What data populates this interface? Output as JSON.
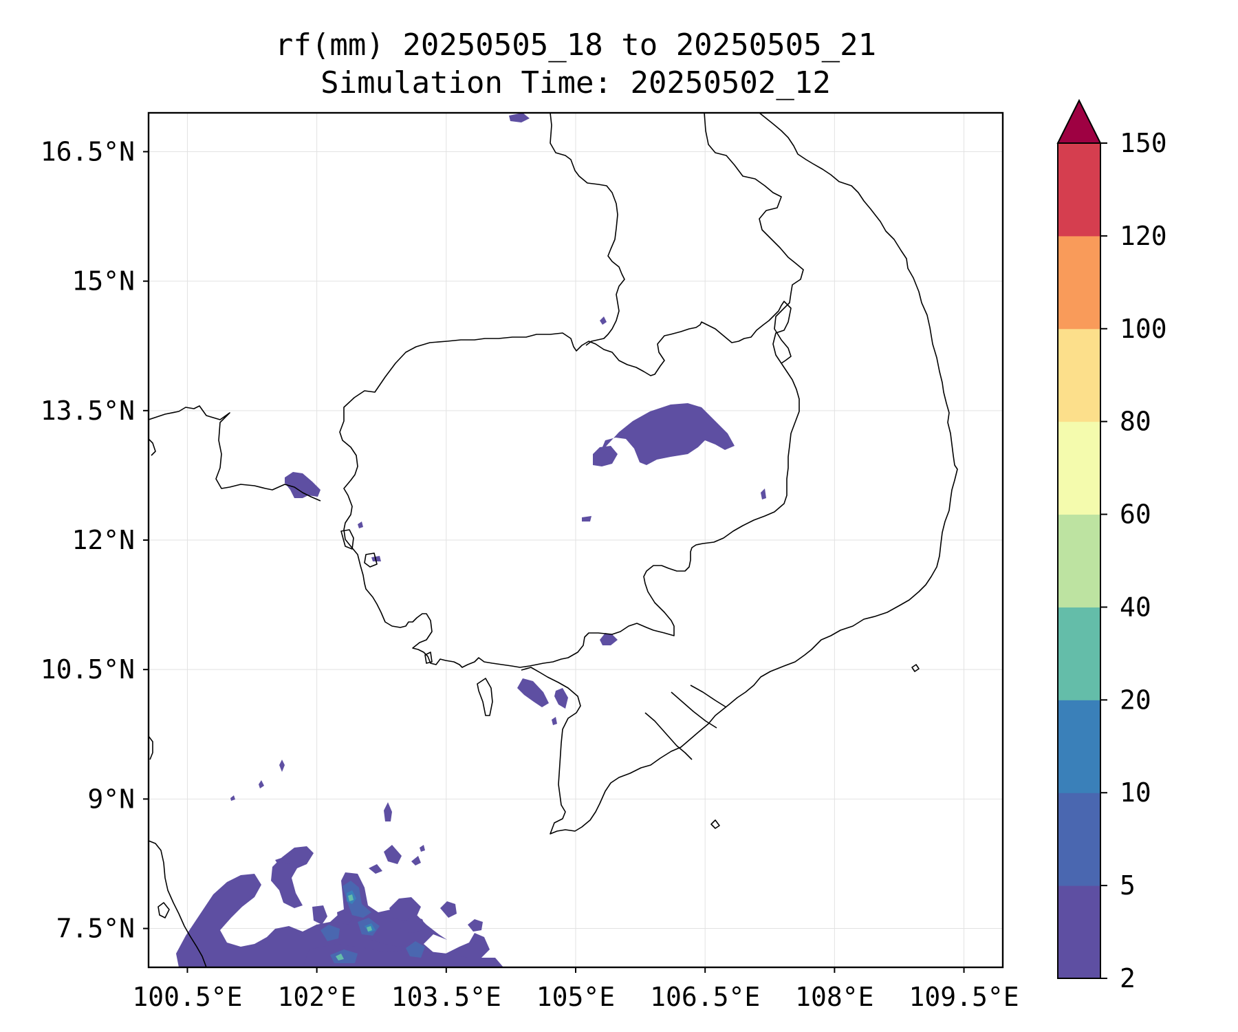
{
  "title": {
    "line1": "rf(mm) 20250505_18 to 20250505_21",
    "line2": "Simulation Time: 20250502_12"
  },
  "map": {
    "lon_range": [
      100.05,
      109.95
    ],
    "lat_range": [
      7.05,
      16.95
    ],
    "lon_ticks": [
      {
        "value": 100.5,
        "label": "100.5°E"
      },
      {
        "value": 102.0,
        "label": "102°E"
      },
      {
        "value": 103.5,
        "label": "103.5°E"
      },
      {
        "value": 105.0,
        "label": "105°E"
      },
      {
        "value": 106.5,
        "label": "106.5°E"
      },
      {
        "value": 108.0,
        "label": "108°E"
      },
      {
        "value": 109.5,
        "label": "109.5°E"
      }
    ],
    "lat_ticks": [
      {
        "value": 16.5,
        "label": "16.5°N"
      },
      {
        "value": 15.0,
        "label": "15°N"
      },
      {
        "value": 13.5,
        "label": "13.5°N"
      },
      {
        "value": 12.0,
        "label": "12°N"
      },
      {
        "value": 10.5,
        "label": "10.5°N"
      },
      {
        "value": 9.0,
        "label": "9°N"
      },
      {
        "value": 7.5,
        "label": "7.5°N"
      }
    ],
    "grid": true
  },
  "colorbar": {
    "levels": [
      2,
      5,
      10,
      20,
      40,
      60,
      80,
      100,
      120,
      150
    ],
    "tick_labels": [
      "2",
      "5",
      "10",
      "20",
      "40",
      "60",
      "80",
      "100",
      "120",
      "150"
    ],
    "colors": [
      "#5e4fa2",
      "#4a67b0",
      "#3a80b9",
      "#64bda9",
      "#bde3a1",
      "#f4fbad",
      "#fcdf8b",
      "#f99b5a",
      "#d53e4f"
    ],
    "extend_color": "#9e0142",
    "extend": "max"
  },
  "rain_colors": {
    "low": "#5e4fa2",
    "mid": "#4a67b0",
    "high": "#3a80b9",
    "peak": "#64bda9"
  }
}
